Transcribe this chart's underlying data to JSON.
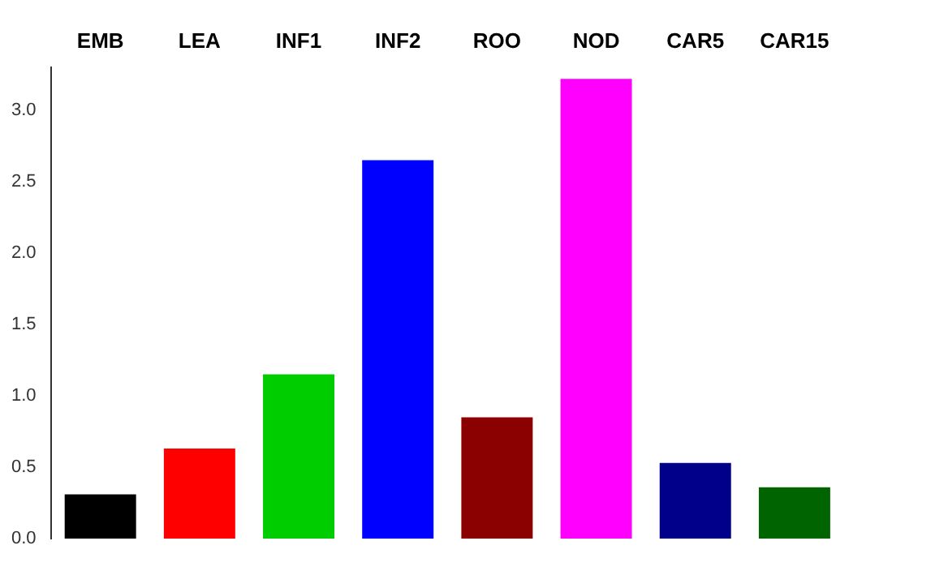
{
  "chart_data": {
    "type": "bar",
    "categories": [
      "EMB",
      "LEA",
      "INF1",
      "INF2",
      "ROO",
      "NOD",
      "CAR5",
      "CAR15"
    ],
    "values": [
      0.31,
      0.63,
      1.15,
      2.65,
      0.85,
      3.22,
      0.53,
      0.36
    ],
    "colors": [
      "#000000",
      "#ff0000",
      "#00cd00",
      "#0000ff",
      "#8b0000",
      "#ff00ff",
      "#00008b",
      "#006400"
    ],
    "ylim": [
      0,
      3.3
    ],
    "yticks": [
      {
        "value": 0,
        "label": "0.0"
      },
      {
        "value": 0.5,
        "label": "0.5"
      },
      {
        "value": 1,
        "label": "1.0"
      },
      {
        "value": 1.5,
        "label": "1.5"
      },
      {
        "value": 2,
        "label": "2.0"
      },
      {
        "value": 2.5,
        "label": "2.5"
      },
      {
        "value": 3,
        "label": "3.0"
      }
    ],
    "grid": false,
    "legend": false
  }
}
